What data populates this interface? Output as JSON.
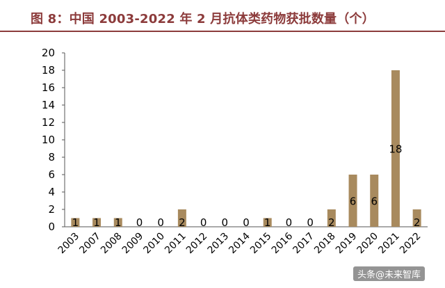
{
  "figure_title": "图 8：中国 2003-2022 年 2 月抗体类药物获批数量（个）",
  "watermark": "头条@未来智库",
  "colors": {
    "bar": "#a88a5e",
    "title": "#8c3b3b",
    "axis": "#555555"
  },
  "chart_data": {
    "type": "bar",
    "categories": [
      "2003",
      "2007",
      "2008",
      "2009",
      "2010",
      "2011",
      "2012",
      "2013",
      "2014",
      "2015",
      "2016",
      "2017",
      "2018",
      "2019",
      "2020",
      "2021",
      "2022"
    ],
    "values": [
      1,
      1,
      1,
      0,
      0,
      2,
      0,
      0,
      0,
      1,
      0,
      0,
      2,
      6,
      6,
      18,
      2
    ],
    "data_labels": [
      "1",
      "1",
      "1",
      "0",
      "0",
      "2",
      "0",
      "0",
      "0",
      "1",
      "0",
      "0",
      "2",
      "6",
      "6",
      "18",
      "2"
    ],
    "y_ticks": [
      "0",
      "2",
      "4",
      "6",
      "8",
      "10",
      "12",
      "14",
      "16",
      "18",
      "20"
    ],
    "ylim": [
      0,
      20
    ],
    "grid": false,
    "legend": "none"
  }
}
